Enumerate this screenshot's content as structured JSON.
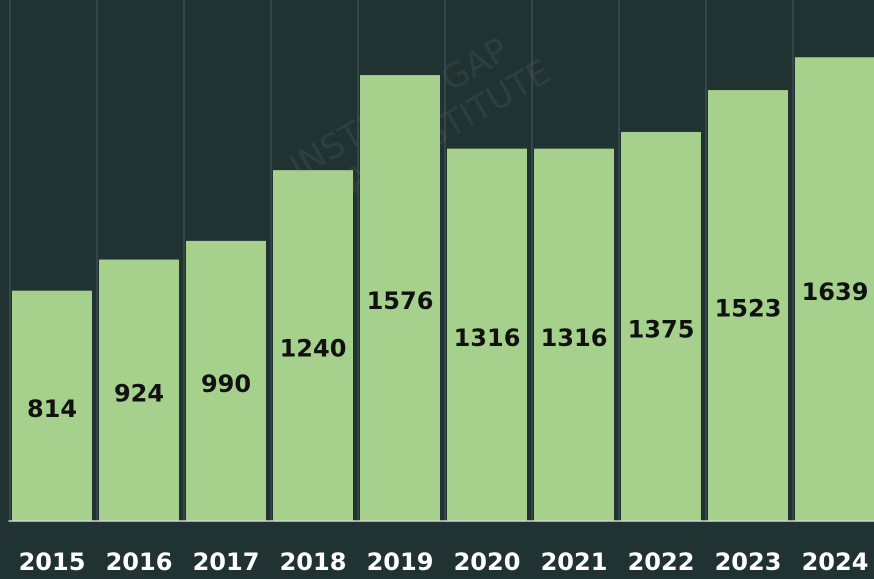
{
  "chart_data": {
    "type": "bar",
    "categories": [
      "2015",
      "2016",
      "2017",
      "2018",
      "2019",
      "2020",
      "2021",
      "2022",
      "2023",
      "2024"
    ],
    "values": [
      814,
      924,
      990,
      1240,
      1576,
      1316,
      1316,
      1375,
      1523,
      1639
    ],
    "color": "#a6d18c",
    "ylim": [
      0,
      1700
    ],
    "watermark": [
      "INSTITUTI GAP",
      "GAP INSTITUTE"
    ]
  }
}
